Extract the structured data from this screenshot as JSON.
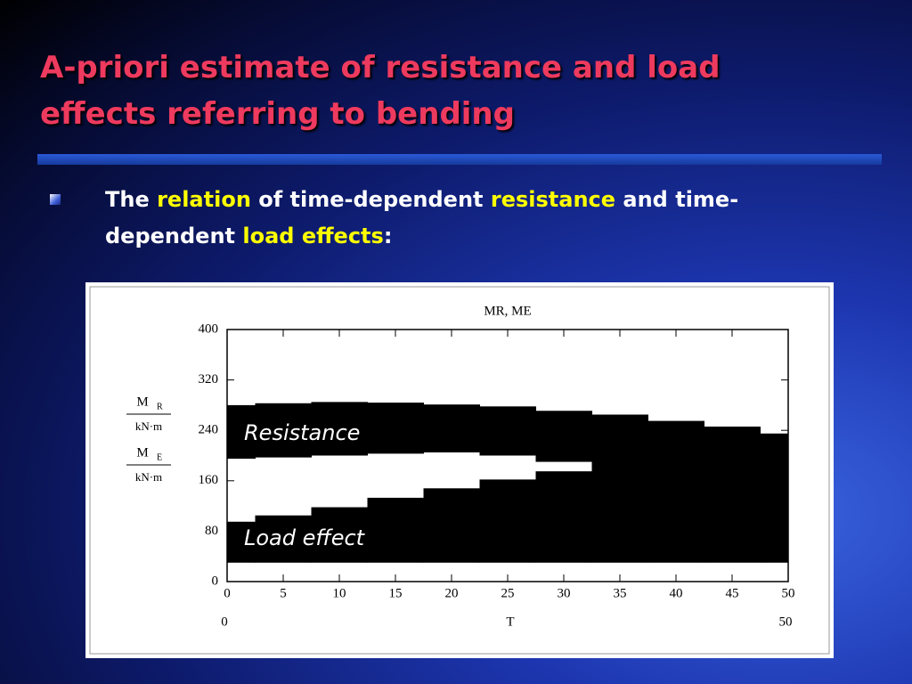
{
  "title": "A-priori estimate of resistance and load effects referring to bending",
  "bullet": [
    {
      "text": "The ",
      "highlight": false
    },
    {
      "text": "relation",
      "highlight": true
    },
    {
      "text": " of time-dependent ",
      "highlight": false
    },
    {
      "text": "resistance",
      "highlight": true
    },
    {
      "text": " and time-dependent ",
      "highlight": false
    },
    {
      "text": "load effects",
      "highlight": true
    },
    {
      "text": ":",
      "highlight": false
    }
  ],
  "chart_data": {
    "type": "band",
    "title": "MR, ME",
    "ylabel": [
      {
        "num": "M",
        "sub": "R",
        "den": "kN·m"
      },
      {
        "num": "M",
        "sub": "E",
        "den": "kN·m"
      }
    ],
    "xlabel": "T",
    "x": [
      0,
      5,
      10,
      15,
      20,
      25,
      30,
      35,
      40,
      45,
      50
    ],
    "series": [
      {
        "name": "Resistance",
        "color": "#000000",
        "upper": [
          280,
          283,
          285,
          284,
          281,
          278,
          271,
          265,
          255,
          246,
          235
        ],
        "lower": [
          195,
          197,
          200,
          203,
          205,
          200,
          190,
          178,
          160,
          143,
          125
        ]
      },
      {
        "name": "Load effect",
        "color": "#000000",
        "upper": [
          95,
          105,
          118,
          133,
          148,
          162,
          175,
          183,
          190,
          196,
          200
        ],
        "lower": [
          30,
          30,
          30,
          30,
          30,
          30,
          30,
          30,
          30,
          30,
          30
        ]
      }
    ],
    "xlim": [
      0,
      50
    ],
    "ylim": [
      0,
      400
    ],
    "xticks": [
      0,
      5,
      10,
      15,
      20,
      25,
      30,
      35,
      40,
      45,
      50
    ],
    "yticks": [
      0,
      80,
      160,
      240,
      320,
      400
    ],
    "x2ticks": [
      0,
      50
    ]
  }
}
